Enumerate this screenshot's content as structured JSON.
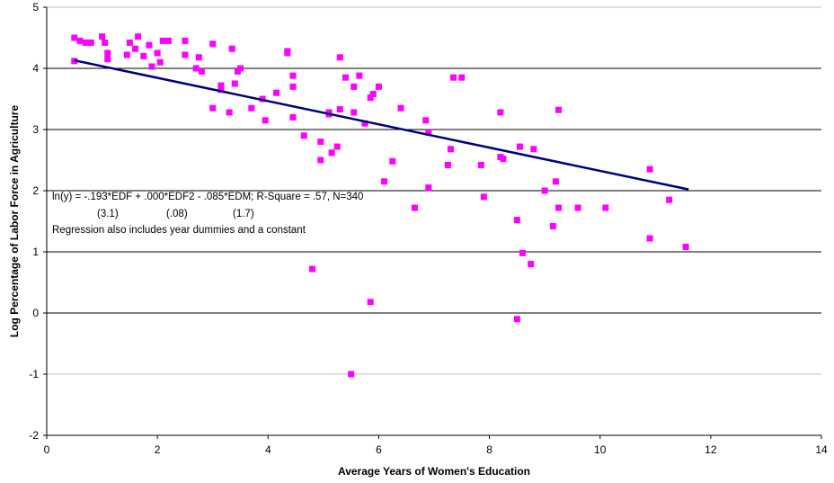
{
  "chart_data": {
    "type": "scatter",
    "title": "",
    "xlabel": "Average Years of Women's Education",
    "ylabel": "Log Percentage of Labor Force in Agriculture",
    "xlim": [
      0,
      14
    ],
    "ylim": [
      -2,
      5
    ],
    "xticks": [
      "0",
      "2",
      "4",
      "6",
      "8",
      "10",
      "12",
      "14"
    ],
    "yticks": [
      "-2",
      "-1",
      "0",
      "1",
      "2",
      "3",
      "4",
      "5"
    ],
    "grid": true,
    "legend": "none",
    "marker_color": "#ff00ff",
    "fit_color": "#000080",
    "annotations": [
      "ln(y) = -.193*EDF + .000*EDF2 - .085*EDM; R-Square = .57, N=340",
      "(3.1)",
      "(.08)",
      "(1.7)",
      "Regression also includes year dummies and a constant"
    ],
    "fit_line": {
      "x": [
        0.5,
        11.6
      ],
      "y": [
        4.13,
        2.02
      ]
    },
    "points": [
      [
        0.5,
        4.5
      ],
      [
        0.6,
        4.45
      ],
      [
        0.7,
        4.42
      ],
      [
        0.8,
        4.42
      ],
      [
        0.5,
        4.12
      ],
      [
        1.0,
        4.52
      ],
      [
        1.05,
        4.42
      ],
      [
        1.1,
        4.25
      ],
      [
        1.1,
        4.15
      ],
      [
        1.5,
        4.42
      ],
      [
        1.45,
        4.22
      ],
      [
        1.6,
        4.32
      ],
      [
        1.65,
        4.52
      ],
      [
        1.75,
        4.2
      ],
      [
        1.85,
        4.38
      ],
      [
        1.9,
        4.03
      ],
      [
        2.0,
        4.25
      ],
      [
        2.05,
        4.1
      ],
      [
        2.1,
        4.45
      ],
      [
        2.2,
        4.45
      ],
      [
        2.5,
        4.45
      ],
      [
        2.5,
        4.22
      ],
      [
        2.7,
        4.0
      ],
      [
        2.75,
        4.18
      ],
      [
        2.8,
        3.95
      ],
      [
        3.0,
        4.4
      ],
      [
        3.0,
        3.35
      ],
      [
        3.15,
        3.72
      ],
      [
        3.15,
        3.65
      ],
      [
        3.3,
        3.28
      ],
      [
        3.35,
        4.32
      ],
      [
        3.4,
        3.75
      ],
      [
        3.5,
        4.0
      ],
      [
        3.45,
        3.95
      ],
      [
        3.7,
        3.35
      ],
      [
        3.9,
        3.5
      ],
      [
        3.95,
        3.15
      ],
      [
        4.15,
        3.6
      ],
      [
        4.35,
        4.28
      ],
      [
        4.35,
        4.25
      ],
      [
        4.45,
        3.88
      ],
      [
        4.45,
        3.7
      ],
      [
        4.45,
        3.2
      ],
      [
        4.65,
        2.9
      ],
      [
        4.8,
        0.72
      ],
      [
        4.95,
        2.8
      ],
      [
        4.95,
        2.5
      ],
      [
        5.1,
        3.28
      ],
      [
        5.1,
        3.25
      ],
      [
        5.15,
        2.62
      ],
      [
        5.25,
        2.72
      ],
      [
        5.3,
        3.33
      ],
      [
        5.3,
        4.18
      ],
      [
        5.4,
        3.85
      ],
      [
        5.55,
        3.7
      ],
      [
        5.55,
        3.28
      ],
      [
        5.65,
        3.88
      ],
      [
        5.75,
        3.1
      ],
      [
        5.85,
        3.52
      ],
      [
        5.9,
        3.58
      ],
      [
        6.0,
        3.7
      ],
      [
        6.1,
        2.15
      ],
      [
        6.25,
        2.48
      ],
      [
        6.4,
        3.35
      ],
      [
        6.65,
        1.72
      ],
      [
        6.85,
        3.15
      ],
      [
        6.9,
        2.95
      ],
      [
        6.9,
        2.05
      ],
      [
        7.25,
        2.42
      ],
      [
        7.3,
        2.68
      ],
      [
        7.35,
        3.85
      ],
      [
        7.5,
        3.85
      ],
      [
        7.85,
        2.42
      ],
      [
        7.9,
        1.9
      ],
      [
        8.2,
        3.28
      ],
      [
        8.2,
        2.55
      ],
      [
        8.25,
        2.52
      ],
      [
        8.5,
        1.52
      ],
      [
        8.55,
        2.72
      ],
      [
        8.6,
        0.98
      ],
      [
        8.75,
        0.8
      ],
      [
        8.8,
        2.68
      ],
      [
        9.0,
        2.0
      ],
      [
        9.15,
        1.42
      ],
      [
        9.2,
        2.15
      ],
      [
        9.25,
        3.32
      ],
      [
        9.25,
        1.72
      ],
      [
        9.6,
        1.72
      ],
      [
        10.1,
        1.72
      ],
      [
        10.9,
        2.35
      ],
      [
        10.9,
        1.22
      ],
      [
        11.25,
        1.85
      ],
      [
        11.55,
        1.08
      ],
      [
        5.85,
        0.18
      ],
      [
        8.5,
        -0.1
      ],
      [
        5.5,
        -1.0
      ]
    ]
  }
}
